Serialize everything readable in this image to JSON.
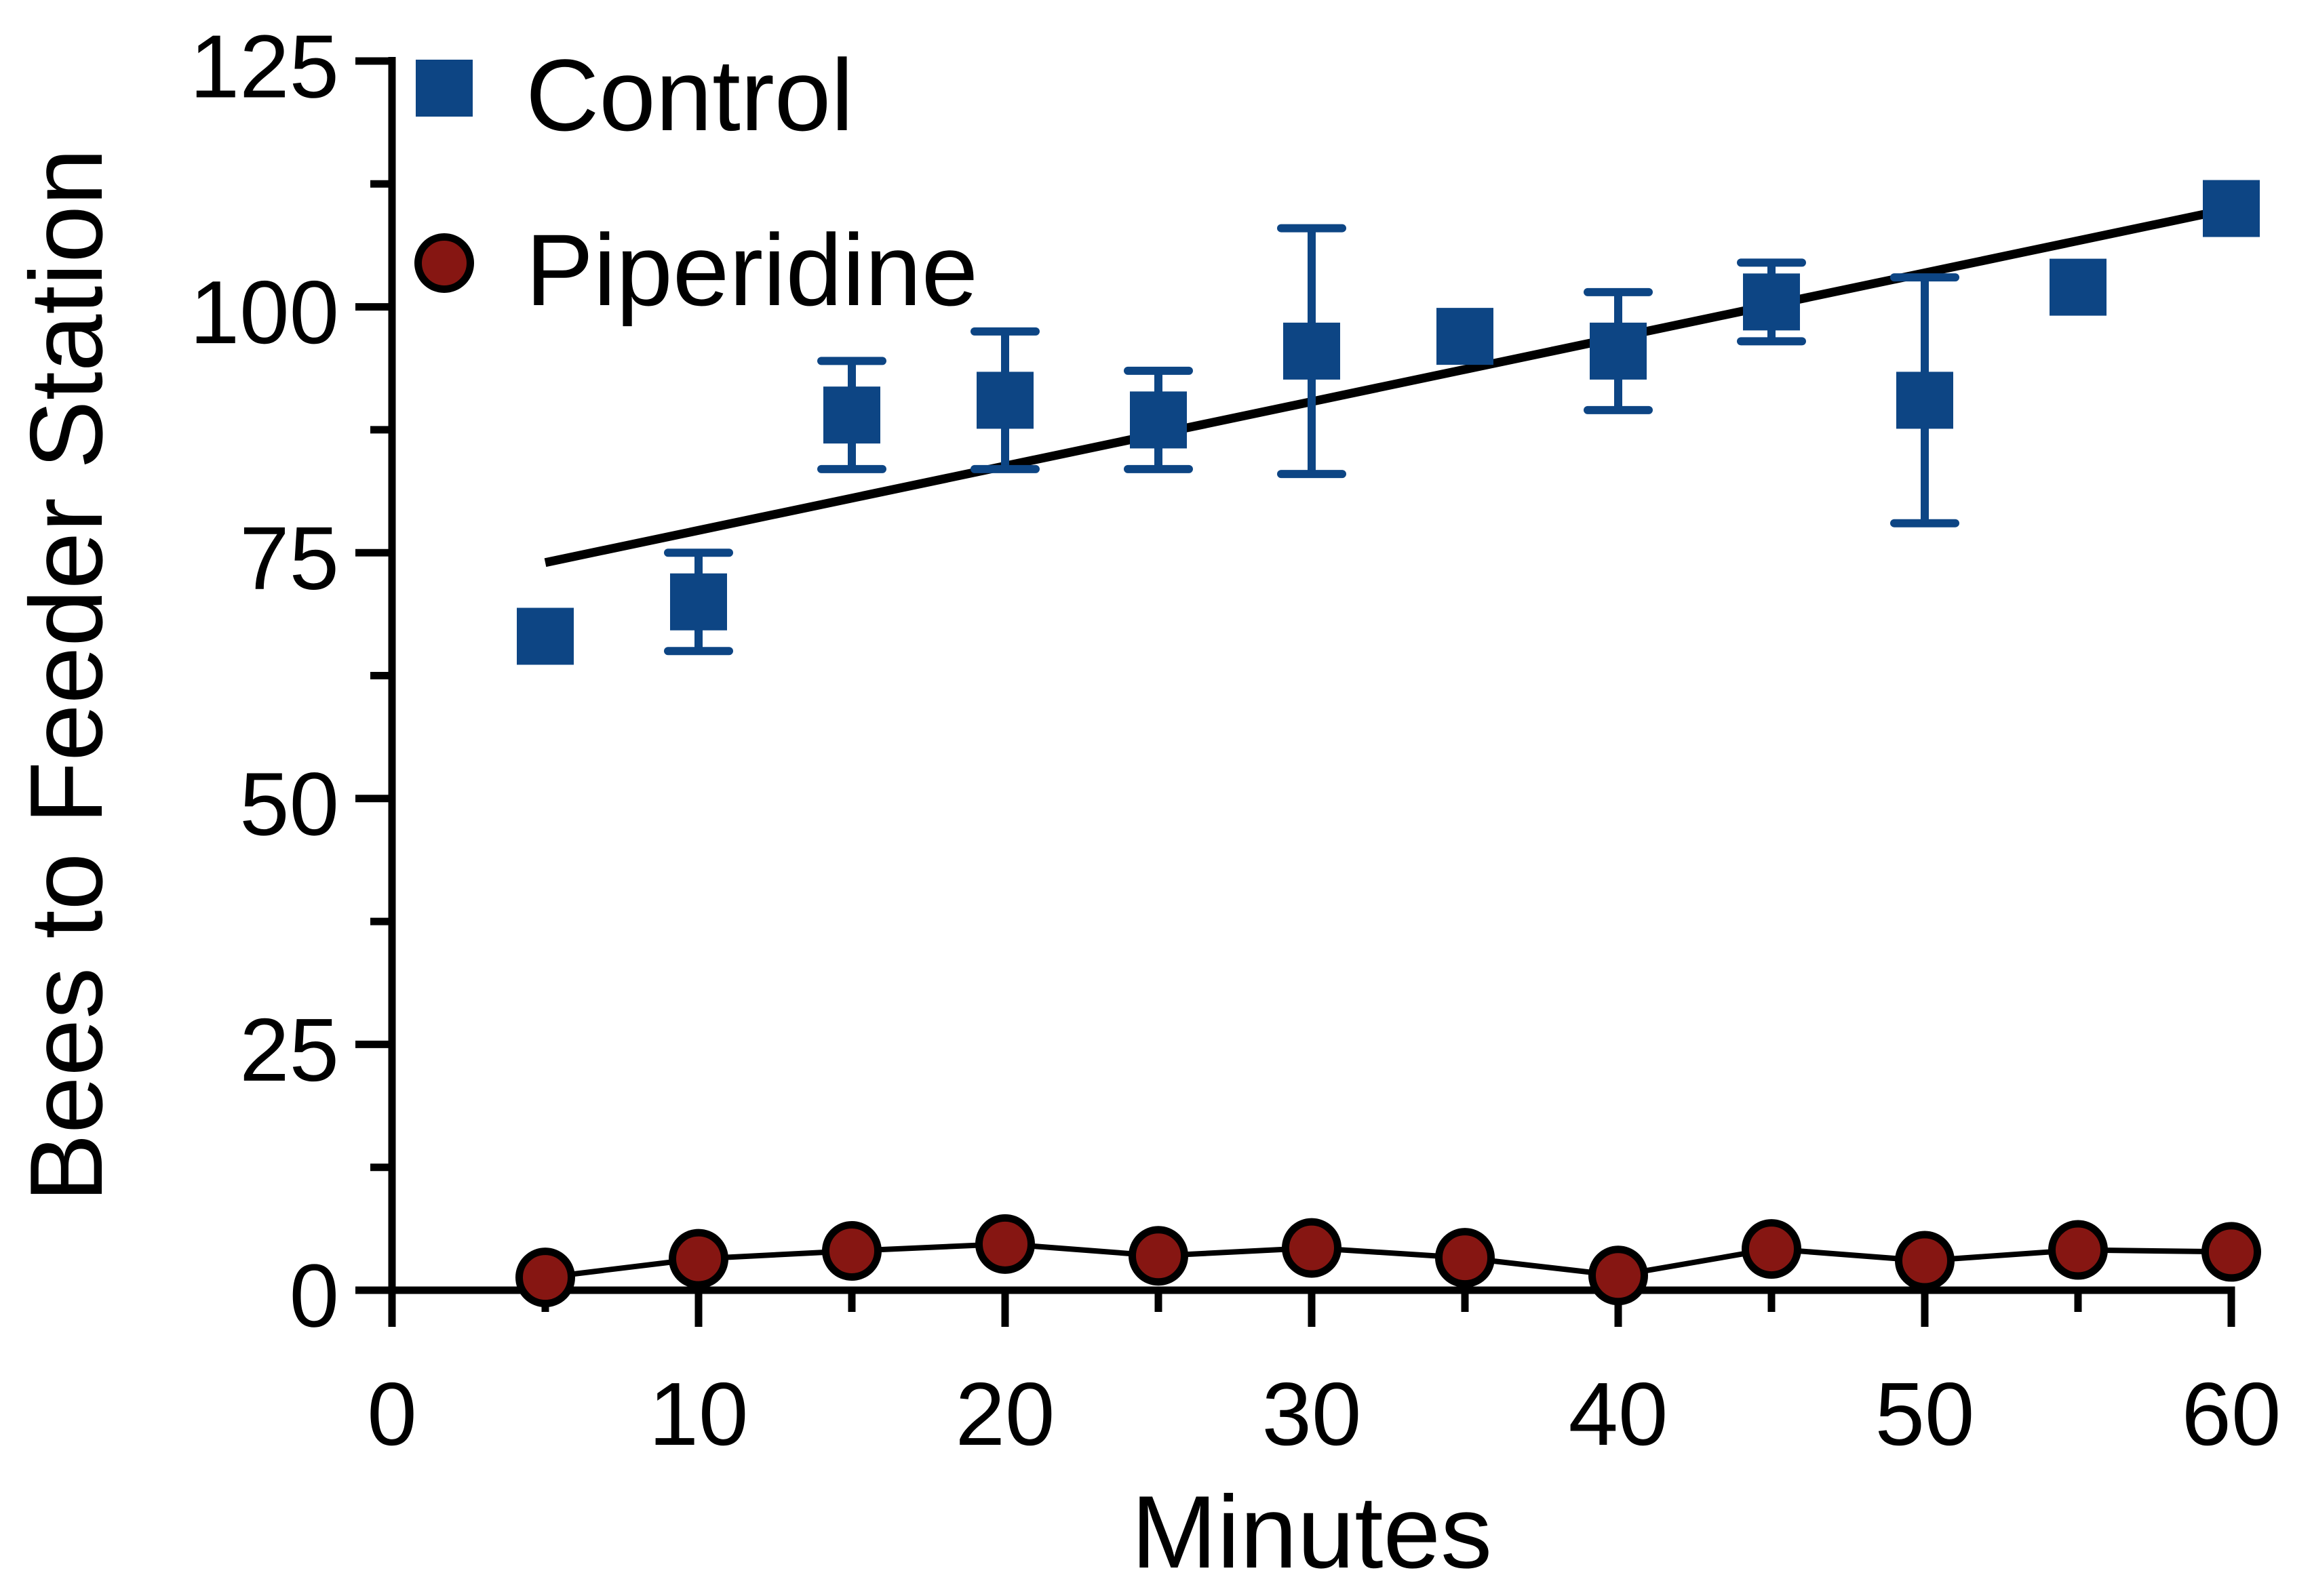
{
  "chart_data": {
    "type": "scatter",
    "title": "",
    "xlabel": "Minutes",
    "ylabel": "Bees to Feeder Station",
    "xlim": [
      0,
      60
    ],
    "ylim": [
      0,
      125
    ],
    "grid": false,
    "legend_position": "top-left",
    "x_ticks_major": [
      0,
      10,
      20,
      30,
      40,
      50,
      60
    ],
    "x_ticks_minor": [
      5,
      15,
      25,
      35,
      45,
      55
    ],
    "y_ticks_major": [
      0,
      25,
      50,
      75,
      100,
      125
    ],
    "y_ticks_minor": [
      12.5,
      37.5,
      62.5,
      87.5,
      112.5
    ],
    "x": [
      5,
      10,
      15,
      20,
      25,
      30,
      35,
      40,
      45,
      50,
      55,
      60
    ],
    "series": [
      {
        "name": "Control",
        "marker": "square",
        "color": "#0D4584",
        "connect_line": false,
        "values": [
          66.5,
          70,
          89,
          90.5,
          88.5,
          95.5,
          97,
          95.5,
          100.5,
          90.5,
          102,
          110
        ],
        "errors": [
          0,
          5,
          5.5,
          7,
          5,
          12.5,
          0,
          6,
          4,
          12.5,
          0,
          0
        ]
      },
      {
        "name": "Piperidine",
        "marker": "circle",
        "color": "#861612",
        "marker_stroke": "#000000",
        "connect_line": true,
        "line_color": "#000000",
        "values": [
          1.3,
          3.2,
          4,
          4.7,
          3.5,
          4.3,
          3.3,
          1.5,
          4.2,
          3,
          4.1,
          3.9
        ],
        "errors": [
          0,
          0,
          0,
          0,
          0,
          0,
          0,
          0,
          0,
          0,
          0,
          0
        ]
      }
    ],
    "trend_line": {
      "series": "Control",
      "x_start": 5,
      "y_start": 74,
      "x_end": 60,
      "y_end": 110,
      "color": "#000000"
    }
  }
}
